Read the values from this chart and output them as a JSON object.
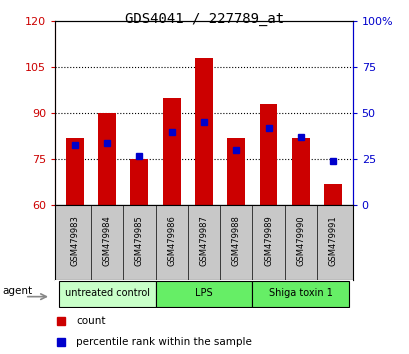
{
  "title": "GDS4041 / 227789_at",
  "samples": [
    "GSM479983",
    "GSM479984",
    "GSM479985",
    "GSM479986",
    "GSM479987",
    "GSM479988",
    "GSM479989",
    "GSM479990",
    "GSM479991"
  ],
  "count_values": [
    82,
    90,
    75,
    95,
    108,
    82,
    93,
    82,
    67
  ],
  "percentile_values": [
    33,
    34,
    27,
    40,
    45,
    30,
    42,
    37,
    24
  ],
  "ylim_left": [
    60,
    120
  ],
  "ylim_right": [
    0,
    100
  ],
  "yticks_left": [
    60,
    75,
    90,
    105,
    120
  ],
  "yticks_right": [
    0,
    25,
    50,
    75,
    100
  ],
  "yticklabels_right": [
    "0",
    "25",
    "50",
    "75",
    "100%"
  ],
  "count_color": "#cc0000",
  "percentile_color": "#0000cc",
  "bar_width": 0.55,
  "group_defs": [
    {
      "label": "untreated control",
      "start": 0,
      "end": 2,
      "color": "#c8ffc8"
    },
    {
      "label": "LPS",
      "start": 3,
      "end": 5,
      "color": "#66ee66"
    },
    {
      "label": "Shiga toxin 1",
      "start": 6,
      "end": 8,
      "color": "#66ee66"
    }
  ],
  "agent_label": "agent",
  "legend_count": "count",
  "legend_percentile": "percentile rank within the sample",
  "label_area_color": "#c8c8c8",
  "grid_yticks": [
    75,
    90,
    105
  ]
}
